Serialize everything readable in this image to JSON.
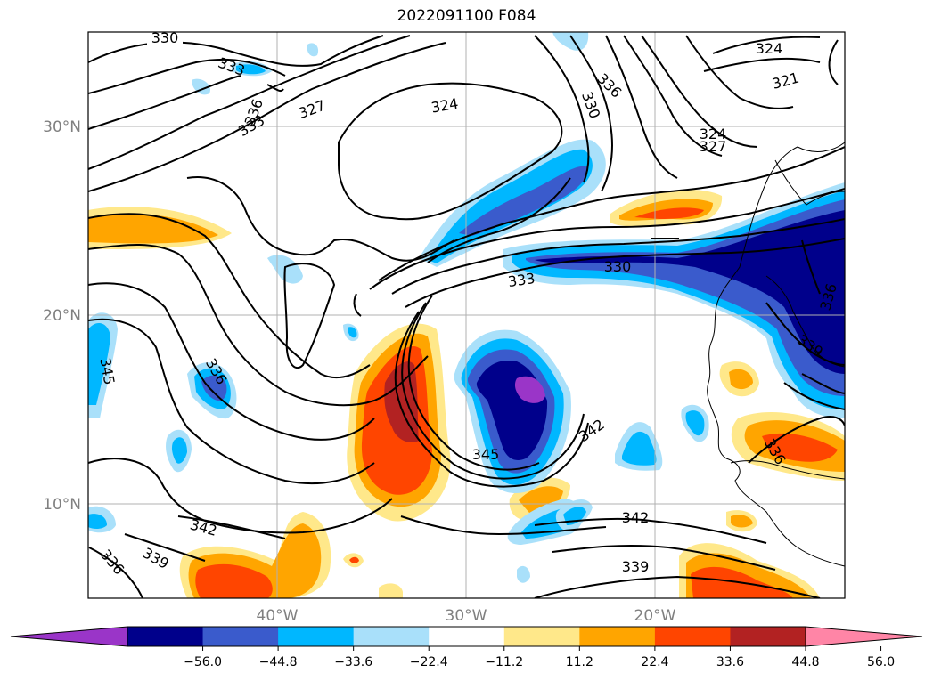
{
  "title": "2022091100 F084",
  "map": {
    "lat_labels": [
      "30°N",
      "20°N",
      "10°N"
    ],
    "lon_labels": [
      "40°W",
      "30°W",
      "20°W"
    ],
    "contour_labels": [
      "330",
      "333",
      "336",
      "327",
      "324",
      "330",
      "336",
      "333",
      "324",
      "321",
      "324",
      "327",
      "330",
      "333",
      "336",
      "336",
      "339",
      "345",
      "336",
      "345",
      "342",
      "345",
      "342",
      "339",
      "342",
      "339",
      "336"
    ]
  },
  "colorbar": {
    "ticks": [
      "−56.0",
      "−44.8",
      "−33.6",
      "−22.4",
      "−11.2",
      "11.2",
      "22.4",
      "33.6",
      "44.8",
      "56.0"
    ],
    "colors": [
      "#9a35c8",
      "#00008b",
      "#3a5bcc",
      "#00b7ff",
      "#a9e0fa",
      "#ffffff",
      "#ffe88a",
      "#ffa500",
      "#ff4500",
      "#b22222",
      "#ff85a6"
    ]
  }
}
